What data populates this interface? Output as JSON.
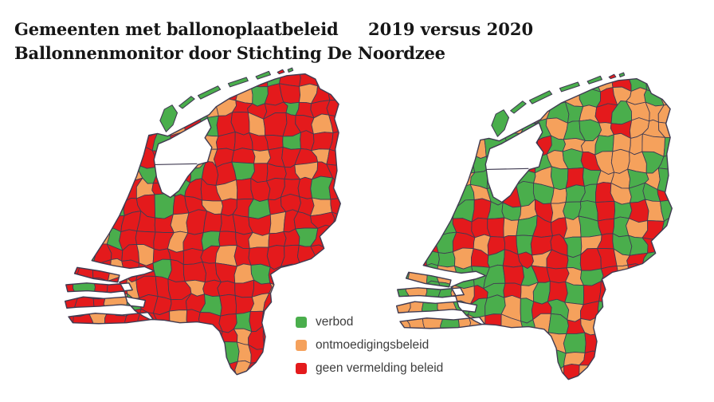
{
  "title": {
    "line1": "Gemeenten met ballonoplaatbeleid",
    "year_comparison": "2019 versus 2020",
    "line2": "Ballonnenmonitor door Stichting De Noordzee"
  },
  "legend": {
    "items": [
      {
        "label": "verbod",
        "color": "#4aae4c",
        "code": "G"
      },
      {
        "label": "ontmoedigingsbeleid",
        "color": "#f5a15c",
        "code": "O"
      },
      {
        "label": "geen vermelding beleid",
        "color": "#e41a1c",
        "code": "R"
      }
    ]
  },
  "colors": {
    "green": "#4aae4c",
    "orange": "#f5a15c",
    "red": "#e41a1c",
    "border": "#403b52",
    "background": "#ffffff",
    "title_text": "#161616",
    "legend_text": "#3d3d3d"
  },
  "chart_data": {
    "type": "heatmap",
    "subtype": "choropleth-netherlands-municipalities",
    "title": "Gemeenten met ballonoplaatbeleid",
    "subtitle": "Ballonnenmonitor door Stichting De Noordzee",
    "comparison": "2019 versus 2020",
    "legend_entries": [
      "verbod",
      "ontmoedigingsbeleid",
      "geen vermelding beleid"
    ],
    "cell_codes": {
      "G": "verbod",
      "O": "ontmoedigingsbeleid",
      "R": "geen vermelding beleid"
    },
    "maps": [
      {
        "year": "2019",
        "seed": 7,
        "cells": [
          "RRRRROOROORORGRRRR",
          "RRRRRGOOORROGRRORR",
          "RRRRROGRROORRRGRRR",
          "RRRRRGRORGRRORRROR",
          "RRRRORGRRORRRRGRRR",
          "RRRRGRRROORRORRROR",
          "RRRROGRRGRRGRRRORR",
          "RRRRRORGRRORRRRRGR",
          "RRRGRRGRRORRGRRROR",
          "RRORRRRORRRRRORRRR",
          "RROGRRRORGRRORRGRR",
          "RGRRRORRRRORRRRRRR",
          "RRRORRGRRRROGRRRRR",
          "RGRRORRRORRRRORRRR",
          "RRROGRRRRGRRORRRRR",
          "RRORRRRORRRGRRRRRR",
          "RRRRRRRRRRRORRRRRR",
          "RRRRRRRRRRGORRRRRR",
          "RRRRRRRRRRRORRRRRR"
        ],
        "island_colors": [
          "G",
          "G",
          "G",
          "G",
          "G",
          "R",
          "G"
        ]
      },
      {
        "year": "2020",
        "seed": 13,
        "cells": [
          "GGGGGGGGGGRGGORGGO",
          "GGGGGGGGGGGOGROOGO",
          "GGGGGGGGGOGGORGOOO",
          "GGGGGGGOGGOGGOROOO",
          "GGGGGOGGORGOOGOOOG",
          "GGGGGGGORGOGROOOGG",
          "GGGGOGGGGOGRGOOGOG",
          "GGGGGOGRGGOGGROGGR",
          "GGGOGRGGOROGGRGROG",
          "GOGGRRROGRROGRGORG",
          "GGRGRORRGRRGORGGRO",
          "GRGGORGRRORGRRORGR",
          "GOGOGGGRGRROGRORRG",
          "GOGGORGROGRGRROGRR",
          "OOGOGGGOGRGORGRRGO",
          "OOOGOOROGOGRORGROG",
          "OOOOORRGRROGRGRRRO",
          "RRRRRRRRRRGOROGRRR",
          "RRRRRRRRRROROGRRRR"
        ],
        "island_colors": [
          "G",
          "G",
          "G",
          "G",
          "G",
          "R",
          "G"
        ]
      }
    ]
  }
}
